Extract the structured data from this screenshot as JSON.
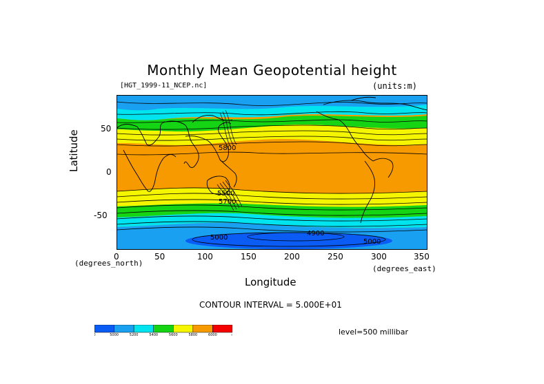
{
  "title": "Monthly Mean Geopotential height",
  "file_label": "[HGT_1999-11_NCEP.nc]",
  "units_label": "(units:m)",
  "y_axis": {
    "label": "Latitude",
    "unit": "(degrees_north)",
    "ticks": [
      "50",
      "0",
      "-50"
    ]
  },
  "x_axis": {
    "label": "Longitude",
    "unit": "(degrees_east)",
    "ticks": [
      "0",
      "50",
      "100",
      "150",
      "200",
      "250",
      "300",
      "350"
    ]
  },
  "contour_interval": "CONTOUR INTERVAL = 5.000E+01",
  "level": "level=500 millibar",
  "contour_labels": [
    "5500",
    "5700",
    "5800",
    "5000",
    "4900",
    "5000"
  ],
  "colorbar": {
    "labels": [
      "0",
      "5000",
      "5200",
      "5400",
      "5600",
      "5800",
      "6000",
      "∞"
    ],
    "colors": [
      "#0a5cf5",
      "#1aa0f0",
      "#00e4f0",
      "#14d414",
      "#f5f500",
      "#f79a00",
      "#f50000"
    ]
  },
  "chart_data": {
    "type": "heatmap",
    "variable": "Monthly Mean Geopotential height",
    "units": "m",
    "level": "500 millibar",
    "xlim": [
      0,
      357.5
    ],
    "ylim": [
      -90,
      90
    ],
    "contour_interval": 50,
    "bands": [
      {
        "lat": 85,
        "value": 5180
      },
      {
        "lat": 70,
        "value": 5250
      },
      {
        "lat": 60,
        "value": 5380
      },
      {
        "lat": 50,
        "value": 5520
      },
      {
        "lat": 40,
        "value": 5680
      },
      {
        "lat": 30,
        "value": 5780
      },
      {
        "lat": 20,
        "value": 5840
      },
      {
        "lat": 0,
        "value": 5880
      },
      {
        "lat": -20,
        "value": 5850
      },
      {
        "lat": -30,
        "value": 5760
      },
      {
        "lat": -40,
        "value": 5620
      },
      {
        "lat": -50,
        "value": 5450
      },
      {
        "lat": -60,
        "value": 5250
      },
      {
        "lat": -70,
        "value": 5080
      },
      {
        "lat": -80,
        "value": 4980
      }
    ]
  }
}
